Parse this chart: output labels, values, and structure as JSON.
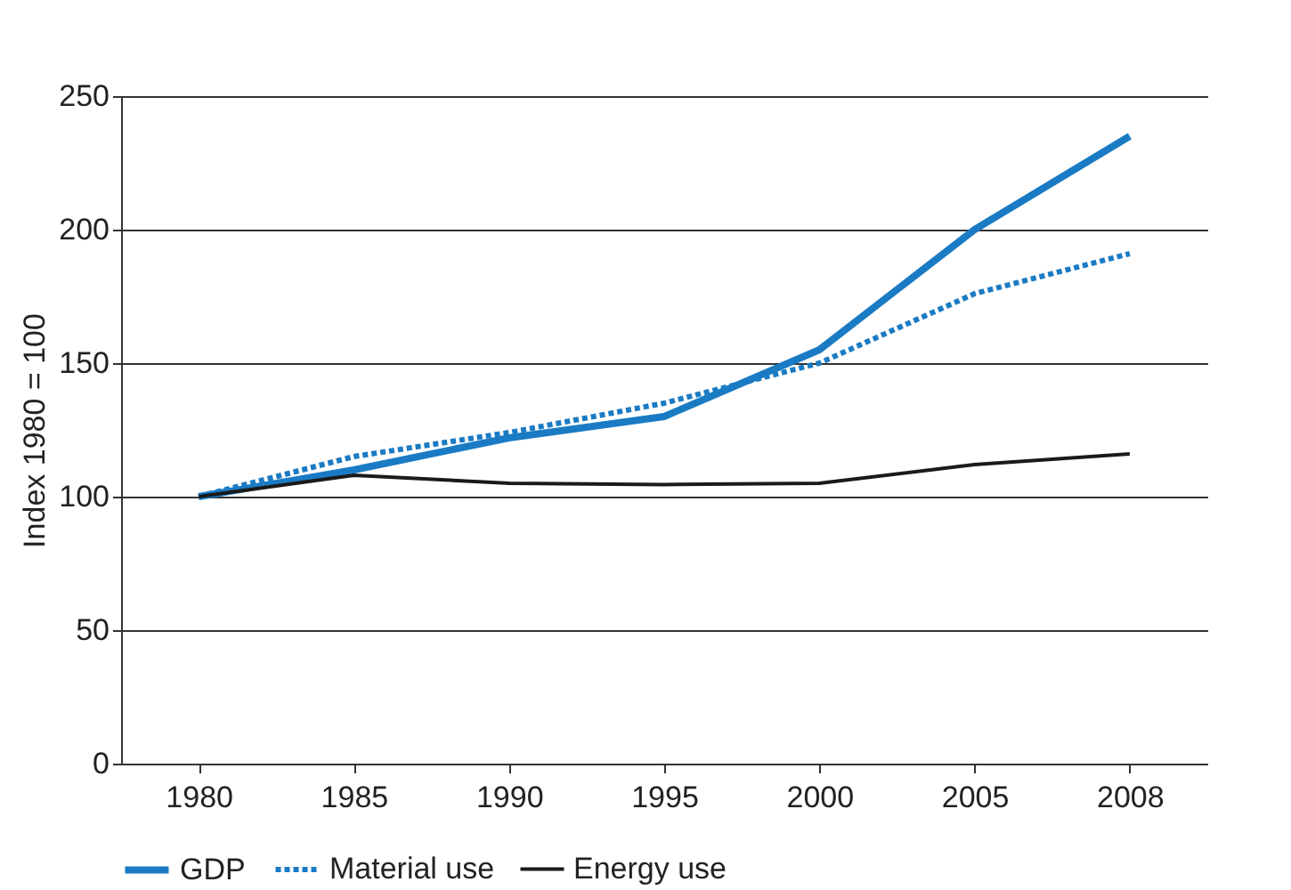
{
  "chart_data": {
    "type": "line",
    "ylabel": "Index 1980 = 100",
    "categories": [
      "1980",
      "1985",
      "1990",
      "1995",
      "2000",
      "2005",
      "2008"
    ],
    "series": [
      {
        "name": "GDP",
        "color": "#1a7bc4",
        "line_style": "solid",
        "values": [
          100,
          110,
          122,
          130,
          155,
          200,
          235
        ]
      },
      {
        "name": "Material use",
        "color": "#1a7bc4",
        "line_style": "dotted",
        "values": [
          100,
          115,
          124,
          135,
          150,
          176,
          191
        ]
      },
      {
        "name": "Energy use",
        "color": "#1a1a1a",
        "line_style": "solid",
        "values": [
          100,
          108,
          105,
          104.5,
          105,
          112,
          116
        ]
      }
    ],
    "ylim": [
      0,
      250
    ],
    "yticks": [
      0,
      50,
      100,
      150,
      200,
      250
    ],
    "grid": "y",
    "legend": "bottom",
    "marker": "none"
  }
}
